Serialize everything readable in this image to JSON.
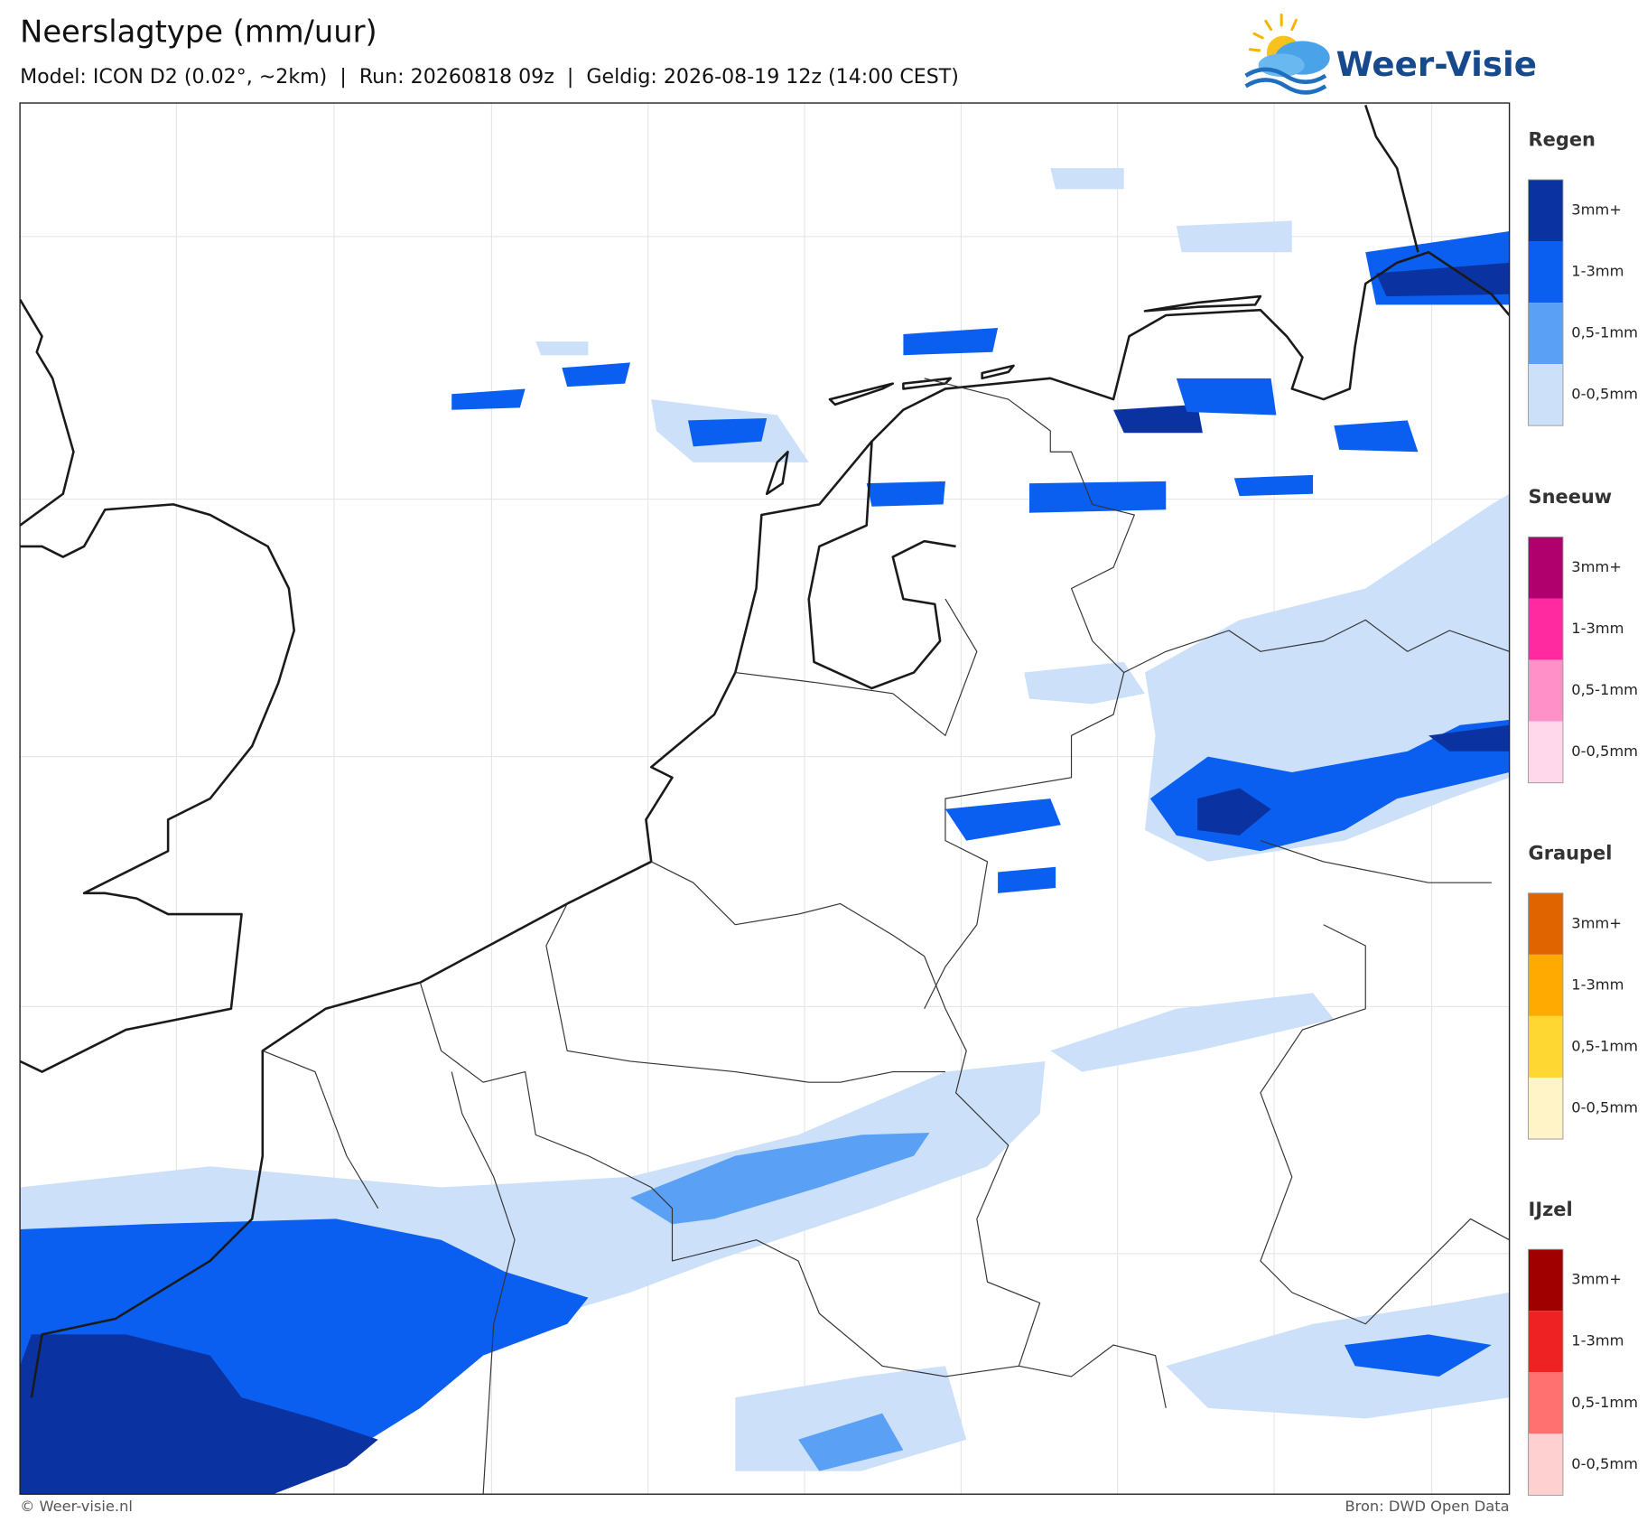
{
  "header": {
    "title": "Neerslagtype (mm/uur)",
    "subtitle": "Model: ICON D2 (0.02°, ~2km)  |  Run: 20260818 09z  |  Geldig: 2026-08-19 12z (14:00 CEST)"
  },
  "logo": {
    "text": "Weer-Visie"
  },
  "legend": [
    {
      "name": "Regen",
      "items": [
        {
          "label": "3mm+",
          "color": "#0a32a0"
        },
        {
          "label": "1-3mm",
          "color": "#0a5ff0"
        },
        {
          "label": "0,5-1mm",
          "color": "#5aa0f5"
        },
        {
          "label": "0-0,5mm",
          "color": "#cce0fa"
        }
      ]
    },
    {
      "name": "Sneeuw",
      "items": [
        {
          "label": "3mm+",
          "color": "#b0006e"
        },
        {
          "label": "1-3mm",
          "color": "#ff2aa0"
        },
        {
          "label": "0,5-1mm",
          "color": "#ff90c8"
        },
        {
          "label": "0-0,5mm",
          "color": "#ffd8ec"
        }
      ]
    },
    {
      "name": "Graupel",
      "items": [
        {
          "label": "3mm+",
          "color": "#e06400"
        },
        {
          "label": "1-3mm",
          "color": "#ffaa00"
        },
        {
          "label": "0,5-1mm",
          "color": "#ffd733"
        },
        {
          "label": "0-0,5mm",
          "color": "#fff3c8"
        }
      ]
    },
    {
      "name": "IJzel",
      "items": [
        {
          "label": "3mm+",
          "color": "#a00000"
        },
        {
          "label": "1-3mm",
          "color": "#ee2222"
        },
        {
          "label": "0,5-1mm",
          "color": "#ff7070"
        },
        {
          "label": "0-0,5mm",
          "color": "#ffd0d0"
        }
      ]
    }
  ],
  "footer": {
    "copyright": "© Weer-visie.nl",
    "source": "Bron: DWD Open Data"
  }
}
